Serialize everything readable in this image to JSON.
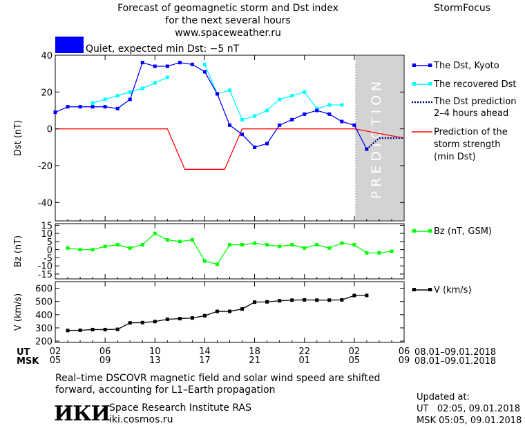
{
  "header": {
    "title_line1": "Forecast of geomagnetic storm and Dst index",
    "title_line2": "for the next several hours",
    "url": "www.spaceweather.ru",
    "brand": "StormFocus"
  },
  "status": {
    "label": "Quiet, expected min Dst: −5 nT",
    "color": "#0000ff"
  },
  "prediction_label": "PREDICTION",
  "legend": {
    "dst_kyoto": "The Dst, Kyoto",
    "recovered": "The recovered Dst",
    "pred_line1": "The Dst prediction",
    "pred_line2": "2–4 hours ahead",
    "storm_line1": "Prediction of the",
    "storm_line2": "storm strength",
    "storm_line3": "(min Dst)",
    "bz": "Bz (nT, GSM)",
    "v": "V (km/s)"
  },
  "axes": {
    "ut_label": "UT",
    "msk_label": "MSK",
    "ut_ticks": [
      "02",
      "06",
      "10",
      "14",
      "18",
      "22",
      "02",
      "06"
    ],
    "msk_ticks": [
      "05",
      "09",
      "13",
      "17",
      "21",
      "01",
      "05",
      "09"
    ],
    "date_range_ut": "08.01–09.01.2018",
    "date_range_msk": "08.01–09.01.2018"
  },
  "footer": {
    "note_line1": "Real–time DSCOVR magnetic field and solar wind speed are shifted",
    "note_line2": "forward, accounting for L1–Earth propagation",
    "institute": "Space Research Institute RAS",
    "site": "iki.cosmos.ru",
    "logo_text": "ИКИ",
    "updated_label": "Updated at:",
    "updated_ut": "UT   02:05, 09.01.2018",
    "updated_msk": "MSK 05:05, 09.01.2018"
  },
  "colors": {
    "dst": "#0000ff",
    "recovered": "#00ffff",
    "prediction": "#00008b",
    "storm": "#ff0000",
    "bz": "#00ff00",
    "v": "#000000",
    "shade": "#d3d3d3"
  },
  "chart_data": [
    {
      "type": "line",
      "panel": "dst",
      "ylabel": "Dst (nT)",
      "ylim": [
        -50,
        40
      ],
      "yticks": [
        40,
        20,
        0,
        -20,
        -40
      ],
      "xlim": [
        0,
        28
      ],
      "shaded_from": 24,
      "series": [
        {
          "name": "The Dst, Kyoto",
          "x": [
            0,
            1,
            2,
            3,
            4,
            5,
            6,
            7,
            8,
            9,
            10,
            11,
            12,
            13,
            14,
            15,
            16,
            17,
            18,
            19,
            20,
            21,
            22,
            23,
            24,
            25
          ],
          "values": [
            9,
            12,
            12,
            12,
            12,
            11,
            16,
            36,
            34,
            34,
            36,
            35,
            31,
            19,
            2,
            -3,
            -10,
            -8,
            2,
            5,
            8,
            10,
            8,
            4,
            2,
            -11
          ]
        },
        {
          "name": "The recovered Dst",
          "segments": [
            {
              "x": [
                3,
                4,
                5,
                6,
                7,
                8,
                9
              ],
              "values": [
                14,
                16,
                18,
                20,
                22,
                25,
                28
              ]
            },
            {
              "x": [
                12,
                13,
                14,
                15,
                16,
                17,
                18,
                19,
                20,
                21,
                22,
                23
              ],
              "values": [
                35,
                19,
                21,
                5,
                7,
                10,
                16,
                18,
                20,
                11,
                13,
                13
              ]
            }
          ]
        },
        {
          "name": "The Dst prediction 2–4 hours ahead",
          "x": [
            25,
            26,
            27,
            28
          ],
          "values": [
            -11,
            -5,
            -5,
            -5
          ]
        },
        {
          "name": "Prediction of the storm strength (min Dst)",
          "x": [
            0,
            9,
            10.4,
            13.6,
            15,
            24,
            28
          ],
          "values": [
            0,
            0,
            -22,
            -22,
            0,
            0,
            -5
          ]
        }
      ]
    },
    {
      "type": "line",
      "panel": "bz",
      "ylabel": "Bz (nT)",
      "ylim": [
        -18,
        16
      ],
      "yticks": [
        15,
        10,
        5,
        0,
        -5,
        -10,
        -15
      ],
      "series": [
        {
          "name": "Bz (nT, GSM)",
          "x": [
            1,
            2,
            3,
            4,
            5,
            6,
            7,
            8,
            9,
            10,
            11,
            12,
            13,
            14,
            15,
            16,
            17,
            18,
            19,
            20,
            21,
            22,
            23,
            24,
            25,
            26,
            27,
            28,
            29
          ],
          "values": [
            1,
            0,
            0,
            2,
            3,
            1,
            3,
            10,
            6,
            5,
            6,
            -7,
            -9,
            3,
            3,
            4,
            3,
            2,
            3,
            1,
            3,
            1,
            4,
            3,
            -2,
            -2,
            -1,
            null,
            null
          ]
        }
      ]
    },
    {
      "type": "line",
      "panel": "v",
      "ylabel": "V (km/s)",
      "ylim": [
        190,
        650
      ],
      "yticks": [
        600,
        500,
        400,
        300,
        200
      ],
      "series": [
        {
          "name": "V (km/s)",
          "x": [
            1,
            2,
            3,
            4,
            5,
            6,
            7,
            8,
            9,
            10,
            11,
            12,
            13,
            14,
            15,
            16,
            17,
            18,
            19,
            20,
            21,
            22,
            23,
            24,
            25,
            26
          ],
          "values": [
            280,
            282,
            287,
            287,
            289,
            338,
            340,
            348,
            365,
            370,
            375,
            392,
            425,
            425,
            443,
            495,
            497,
            505,
            510,
            512,
            510,
            510,
            512,
            545,
            546,
            null
          ]
        }
      ]
    }
  ]
}
